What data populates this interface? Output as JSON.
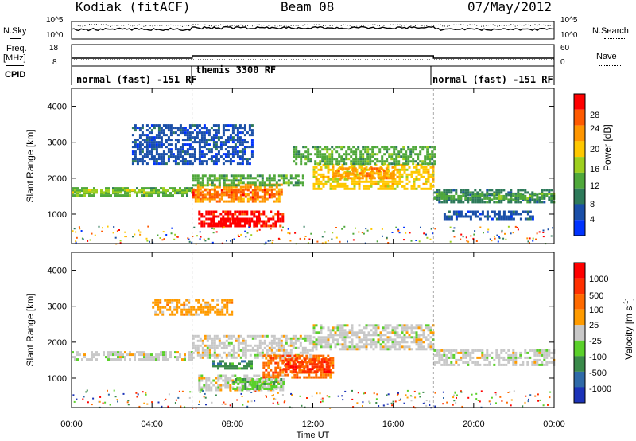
{
  "header": {
    "radar": "Kodiak (fitACF)",
    "beam": "Beam 08",
    "date": "07/May/2012"
  },
  "top_panels": {
    "nsky_label": "N.Sky",
    "nsky_ticks": [
      "10^5",
      "10^0"
    ],
    "nsearch_label": "N.Search",
    "nsearch_ticks": [
      "10^5",
      "10^0"
    ],
    "freq_label": "Freq.",
    "freq_unit": "[MHz]",
    "freq_ticks": [
      "18",
      "8"
    ],
    "nave_label": "Nave",
    "nave_ticks": [
      "60",
      "0"
    ],
    "cpid_label": "CPID"
  },
  "modes": [
    {
      "label": "normal (fast) -151 RF",
      "start_hour": 0,
      "end_hour": 6
    },
    {
      "label": "themis 3300 RF",
      "start_hour": 6,
      "end_hour": 18
    },
    {
      "label": "normal (fast) -151 RF",
      "start_hour": 18,
      "end_hour": 24
    }
  ],
  "power_colorbar": {
    "label": "Power [dB]",
    "ticks": [
      "4",
      "8",
      "12",
      "16",
      "20",
      "24",
      "28"
    ],
    "colors": [
      "#0033ff",
      "#1a4fa8",
      "#2e7a5a",
      "#4fa83a",
      "#9ecf1e",
      "#ffc800",
      "#ff9600",
      "#ff5a00",
      "#ff0000"
    ]
  },
  "velocity_colorbar": {
    "label": "Velocity [m s",
    "label_sup": "-1",
    "label_close": "]",
    "ticks": [
      "1000",
      "500",
      "100",
      "25",
      "-25",
      "-100",
      "-500",
      "-1000"
    ],
    "colors": [
      "#1c33b8",
      "#2f6aa8",
      "#3a8a4a",
      "#5ad02a",
      "#c8c8c8",
      "#ff9b00",
      "#ff6a00",
      "#ff3000",
      "#ff0000"
    ]
  },
  "chart_data": [
    {
      "type": "heatmap",
      "title": "Power",
      "ylabel": "Slant Range [km]",
      "xlabel": "Time UT",
      "yticks": [
        1000,
        2000,
        3000,
        4000
      ],
      "xticks": [
        "00:00",
        "04:00",
        "08:00",
        "12:00",
        "16:00",
        "20:00",
        "00:00"
      ],
      "ylim": [
        180,
        4500
      ],
      "xlim": [
        0,
        24
      ],
      "bands": [
        {
          "t0": 0,
          "t1": 6,
          "r0": 1550,
          "r1": 1750,
          "level": 3
        },
        {
          "t0": 0,
          "t1": 6,
          "r0": 1620,
          "r1": 1700,
          "level": 4
        },
        {
          "t0": 6,
          "t1": 10.5,
          "r0": 1350,
          "r1": 1850,
          "level": 6
        },
        {
          "t0": 6,
          "t1": 10,
          "r0": 1450,
          "r1": 1700,
          "level": 7
        },
        {
          "t0": 6,
          "t1": 11.5,
          "r0": 1800,
          "r1": 2100,
          "level": 3
        },
        {
          "t0": 6.3,
          "t1": 10.5,
          "r0": 650,
          "r1": 1100,
          "level": 8
        },
        {
          "t0": 6.8,
          "t1": 9.5,
          "r0": 700,
          "r1": 900,
          "level": 9
        },
        {
          "t0": 12,
          "t1": 18,
          "r0": 1700,
          "r1": 2400,
          "level": 5
        },
        {
          "t0": 13,
          "t1": 16,
          "r0": 2000,
          "r1": 2300,
          "level": 6
        },
        {
          "t0": 11,
          "t1": 18,
          "r0": 2400,
          "r1": 2900,
          "level": 3
        },
        {
          "t0": 18,
          "t1": 24,
          "r0": 1350,
          "r1": 1700,
          "level": 2
        },
        {
          "t0": 18,
          "t1": 24,
          "r0": 1450,
          "r1": 1600,
          "level": 3
        },
        {
          "t0": 3,
          "t1": 9,
          "r0": 2400,
          "r1": 3500,
          "level": 1
        },
        {
          "t0": 18.5,
          "t1": 23,
          "r0": 900,
          "r1": 1100,
          "level": 1
        }
      ]
    },
    {
      "type": "heatmap",
      "title": "Velocity",
      "ylabel": "Slant Range [km]",
      "xlabel": "Time UT",
      "yticks": [
        1000,
        2000,
        3000,
        4000
      ],
      "xticks": [
        "00:00",
        "04:00",
        "08:00",
        "12:00",
        "16:00",
        "20:00",
        "00:00"
      ],
      "ylim": [
        180,
        4500
      ],
      "xlim": [
        0,
        24
      ],
      "bands": [
        {
          "t0": 0,
          "t1": 6,
          "r0": 1500,
          "r1": 1750,
          "level": 4
        },
        {
          "t0": 6,
          "t1": 12,
          "r0": 1600,
          "r1": 2200,
          "level": 4
        },
        {
          "t0": 6.3,
          "t1": 10.5,
          "r0": 650,
          "r1": 1100,
          "level": 4
        },
        {
          "t0": 12,
          "t1": 18,
          "r0": 1800,
          "r1": 2500,
          "level": 4
        },
        {
          "t0": 18,
          "t1": 24,
          "r0": 1400,
          "r1": 1800,
          "level": 4
        },
        {
          "t0": 9.5,
          "t1": 13,
          "r0": 1050,
          "r1": 1650,
          "level": 6
        },
        {
          "t0": 10.5,
          "t1": 12.8,
          "r0": 1200,
          "r1": 1550,
          "level": 7
        },
        {
          "t0": 7,
          "t1": 9,
          "r0": 1300,
          "r1": 1500,
          "level": 2
        },
        {
          "t0": 4,
          "t1": 8,
          "r0": 2800,
          "r1": 3200,
          "level": 5
        },
        {
          "t0": 8,
          "t1": 10.5,
          "r0": 700,
          "r1": 1000,
          "level": 3
        }
      ]
    }
  ]
}
